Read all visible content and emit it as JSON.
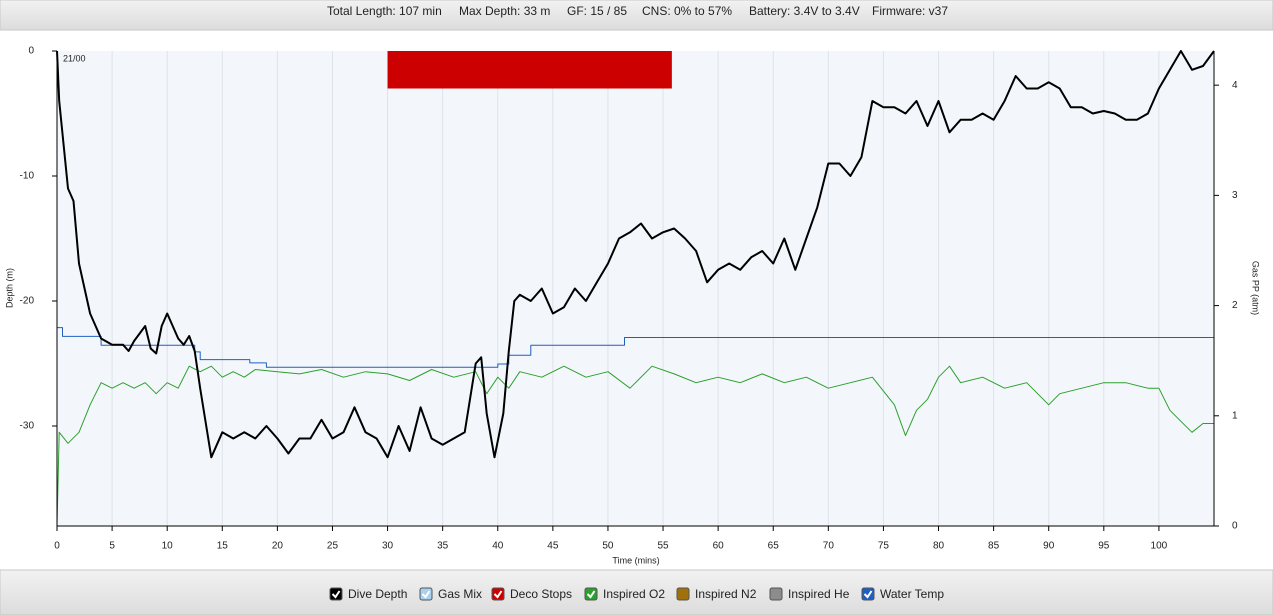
{
  "header": {
    "items": [
      "Total Length: 107 min",
      "Max Depth: 33 m",
      "GF: 15 / 85",
      "CNS: 0% to 57%",
      "Battery: 3.4V to 3.4V",
      "Firmware: v37"
    ]
  },
  "chart_data": {
    "type": "line",
    "annotation": "21/00",
    "xlabel": "Time (mins)",
    "ylabel": "Depth (m)",
    "y2label": "Gas PP (atm)",
    "xlim": [
      0,
      105
    ],
    "ylim": [
      -38,
      0
    ],
    "y2lim": [
      0,
      4.31
    ],
    "xticks": [
      0,
      5,
      10,
      15,
      20,
      25,
      30,
      35,
      40,
      45,
      50,
      55,
      60,
      65,
      70,
      75,
      80,
      85,
      90,
      95,
      100
    ],
    "yticks": [
      -30,
      -20,
      -10,
      0
    ],
    "y2ticks": [
      0,
      1,
      2,
      3,
      4
    ],
    "grid": "x",
    "series": [
      {
        "name": "Dive Depth",
        "checked": true,
        "color": "#000000",
        "x": [
          0,
          0.2,
          1,
          1.5,
          2,
          3,
          4,
          5,
          6,
          6.5,
          7,
          8,
          8.5,
          9,
          9.5,
          10,
          11,
          11.5,
          12,
          12.5,
          13,
          14,
          15,
          16,
          17,
          18,
          19,
          20,
          21,
          22,
          23,
          24,
          25,
          26,
          27,
          28,
          29,
          30,
          31,
          32,
          33,
          34,
          35,
          36,
          37,
          38,
          38.5,
          39,
          39.7,
          40.5,
          41,
          41.5,
          42,
          43,
          44,
          45,
          46,
          47,
          48,
          49,
          50,
          51,
          52,
          53,
          54,
          55,
          56,
          57,
          58,
          59,
          60,
          61,
          62,
          63,
          64,
          65,
          66,
          67,
          68,
          69,
          70,
          71,
          72,
          73,
          74,
          75,
          76,
          77,
          78,
          79,
          80,
          81,
          82,
          83,
          84,
          85,
          86,
          87,
          88,
          89,
          90,
          91,
          92,
          93,
          94,
          95,
          96,
          97,
          98,
          99,
          100,
          101,
          102,
          103,
          104,
          105
        ],
        "values": [
          0,
          -4,
          -11,
          -12,
          -17,
          -21,
          -23,
          -23.5,
          -23.5,
          -24,
          -23.2,
          -22,
          -23.8,
          -24.2,
          -22,
          -21,
          -23,
          -23.5,
          -22.8,
          -24,
          -27,
          -32.5,
          -30.5,
          -31,
          -30.5,
          -31,
          -30,
          -31,
          -32.2,
          -31,
          -31,
          -29.5,
          -31,
          -30.5,
          -28.5,
          -30.5,
          -31,
          -32.5,
          -30,
          -32,
          -28.5,
          -31,
          -31.5,
          -31,
          -30.5,
          -25,
          -24.5,
          -29,
          -32.5,
          -29,
          -24,
          -20,
          -19.5,
          -20,
          -19,
          -21,
          -20.5,
          -19,
          -20,
          -18.5,
          -17,
          -15,
          -14.5,
          -13.8,
          -15,
          -14.5,
          -14.2,
          -15,
          -16,
          -18.5,
          -17.5,
          -17,
          -17.5,
          -16.5,
          -16,
          -17,
          -15,
          -17.5,
          -15,
          -12.5,
          -9,
          -9,
          -10,
          -8.5,
          -4,
          -4.5,
          -4.5,
          -5,
          -4,
          -6,
          -4,
          -6.5,
          -5.5,
          -5.5,
          -5,
          -5.5,
          -4,
          -2,
          -3,
          -3,
          -2.5,
          -3,
          -4.5,
          -4.5,
          -5,
          -4.8,
          -5,
          -5.5,
          -5.5,
          -5,
          -3,
          -1.5,
          0,
          -1.5,
          -1.2,
          0
        ]
      },
      {
        "name": "Gas Mix",
        "checked": true,
        "color": "#a8d0f0"
      },
      {
        "name": "Deco Stops",
        "checked": true,
        "color": "#cc0000",
        "x": [
          30,
          55.8
        ],
        "values": [
          -3,
          -3
        ]
      },
      {
        "name": "Inspired O2",
        "checked": true,
        "color": "#2ca02c",
        "axis": "y2",
        "x": [
          0,
          0.2,
          1,
          2,
          3,
          4,
          5,
          6,
          7,
          8,
          9,
          10,
          11,
          12,
          13,
          14,
          15,
          16,
          17,
          18,
          20,
          22,
          24,
          26,
          28,
          30,
          32,
          34,
          36,
          38,
          39,
          40,
          41,
          42,
          44,
          46,
          48,
          50,
          52,
          54,
          56,
          58,
          60,
          62,
          64,
          66,
          68,
          70,
          72,
          74,
          76,
          77,
          78,
          79,
          80,
          81,
          82,
          84,
          86,
          88,
          90,
          91,
          93,
          95,
          97,
          99,
          100,
          101,
          102,
          103,
          104,
          105
        ],
        "values": [
          0,
          0.85,
          0.75,
          0.85,
          1.1,
          1.3,
          1.25,
          1.3,
          1.25,
          1.3,
          1.2,
          1.3,
          1.25,
          1.45,
          1.4,
          1.45,
          1.35,
          1.4,
          1.35,
          1.42,
          1.4,
          1.38,
          1.42,
          1.35,
          1.4,
          1.38,
          1.32,
          1.42,
          1.35,
          1.4,
          1.2,
          1.35,
          1.25,
          1.4,
          1.35,
          1.45,
          1.35,
          1.4,
          1.25,
          1.45,
          1.38,
          1.3,
          1.35,
          1.3,
          1.38,
          1.3,
          1.35,
          1.25,
          1.3,
          1.35,
          1.1,
          0.82,
          1.05,
          1.15,
          1.35,
          1.45,
          1.3,
          1.35,
          1.25,
          1.3,
          1.1,
          1.2,
          1.25,
          1.3,
          1.3,
          1.25,
          1.25,
          1.05,
          0.95,
          0.85,
          0.93,
          0.93
        ]
      },
      {
        "name": "Inspired N2",
        "checked": false,
        "color": "#a0700a"
      },
      {
        "name": "Inspired He",
        "checked": false,
        "color": "#8c8c8c"
      },
      {
        "name": "Water Temp",
        "checked": true,
        "color": "#1f5fbf",
        "axis": "y2",
        "x": [
          0,
          0.5,
          0.5,
          4,
          4,
          12.5,
          12.5,
          13,
          13,
          17.5,
          17.5,
          19,
          19,
          40,
          40,
          41,
          41,
          43,
          43,
          51.5,
          51.5,
          105
        ],
        "values": [
          1.8,
          1.8,
          1.72,
          1.72,
          1.64,
          1.64,
          1.58,
          1.58,
          1.51,
          1.51,
          1.48,
          1.48,
          1.44,
          1.44,
          1.47,
          1.47,
          1.55,
          1.55,
          1.64,
          1.64,
          1.71,
          1.71
        ]
      }
    ]
  }
}
